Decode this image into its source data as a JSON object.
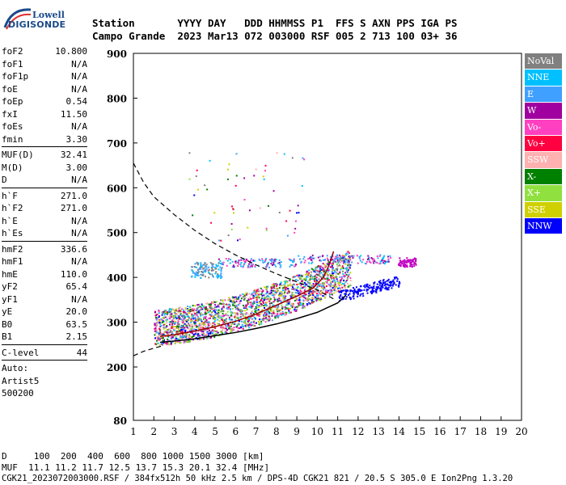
{
  "logo": {
    "brand": "Lowell",
    "name": "DIGISONDE"
  },
  "header": {
    "row1": "Station       YYYY DAY   DDD HHMMSS P1  FFS S AXN PPS IGA PS",
    "row2": "Campo Grande  2023 Mar13 072 003000 RSF 005 2 713 100 03+ 36"
  },
  "params": [
    {
      "label": "foF2",
      "value": "10.800"
    },
    {
      "label": "foF1",
      "value": "N/A"
    },
    {
      "label": "foF1p",
      "value": "N/A"
    },
    {
      "label": "foE",
      "value": "N/A"
    },
    {
      "label": "foEp",
      "value": "0.54"
    },
    {
      "label": "fxI",
      "value": "11.50"
    },
    {
      "label": "foEs",
      "value": "N/A"
    },
    {
      "label": "fmin",
      "value": "3.30"
    },
    {
      "sep": true
    },
    {
      "label": "MUF(D)",
      "value": "32.41"
    },
    {
      "label": "M(D)",
      "value": "3.00"
    },
    {
      "label": "D",
      "value": "N/A"
    },
    {
      "sep": true
    },
    {
      "label": "h`F",
      "value": "271.0"
    },
    {
      "label": "h`F2",
      "value": "271.0"
    },
    {
      "label": "h`E",
      "value": "N/A"
    },
    {
      "label": "h`Es",
      "value": "N/A"
    },
    {
      "sep": true
    },
    {
      "label": "hmF2",
      "value": "336.6"
    },
    {
      "label": "hmF1",
      "value": "N/A"
    },
    {
      "label": "hmE",
      "value": "110.0"
    },
    {
      "label": "yF2",
      "value": "65.4"
    },
    {
      "label": "yF1",
      "value": "N/A"
    },
    {
      "label": "yE",
      "value": "20.0"
    },
    {
      "label": "B0",
      "value": "63.5"
    },
    {
      "label": "B1",
      "value": "2.15"
    },
    {
      "sep": true
    },
    {
      "label": "C-level",
      "value": "44"
    },
    {
      "sep": true
    },
    {
      "label": "Auto:",
      "value": ""
    },
    {
      "label": "Artist5",
      "value": ""
    },
    {
      "label": "500200",
      "value": ""
    }
  ],
  "legend": [
    {
      "label": "NoVal",
      "color": "#808080"
    },
    {
      "label": "NNE",
      "color": "#00c0ff"
    },
    {
      "label": "E",
      "color": "#40a0ff"
    },
    {
      "label": "W",
      "color": "#a000a0"
    },
    {
      "label": "Vo-",
      "color": "#ff40c0"
    },
    {
      "label": "Vo+",
      "color": "#ff0040"
    },
    {
      "label": "SSW",
      "color": "#ffb0b0"
    },
    {
      "label": "X-",
      "color": "#008000"
    },
    {
      "label": "X+",
      "color": "#90e040"
    },
    {
      "label": "SSE",
      "color": "#d0d000"
    },
    {
      "label": "NNW",
      "color": "#0000ff"
    }
  ],
  "footer": {
    "d_row": "D     100  200  400  600  800 1000 1500 3000 [km]",
    "muf_row": "MUF  11.1 11.2 11.7 12.5 13.7 15.3 20.1 32.4 [MHz]",
    "file_row": "CGK21_2023072003000.RSF / 384fx512h 50 kHz 2.5 km / DPS-4D CGK21 821 / 20.5 S 305.0 E Ion2Png 1.3.20"
  },
  "chart_data": {
    "type": "scatter",
    "xlim": [
      1,
      20
    ],
    "ylim": [
      80,
      900
    ],
    "xticks": [
      1,
      2,
      3,
      4,
      5,
      6,
      7,
      8,
      9,
      10,
      11,
      12,
      13,
      14,
      15,
      16,
      17,
      18,
      19,
      20
    ],
    "yticks": [
      80,
      200,
      300,
      400,
      500,
      600,
      700,
      800,
      900
    ],
    "traces": [
      {
        "name": "o-trace",
        "color": "#990000",
        "points": [
          [
            2.3,
            268
          ],
          [
            3,
            272
          ],
          [
            4,
            280
          ],
          [
            5,
            290
          ],
          [
            6,
            302
          ],
          [
            7,
            318
          ],
          [
            8,
            338
          ],
          [
            9,
            358
          ],
          [
            9.8,
            376
          ],
          [
            10.3,
            400
          ],
          [
            10.6,
            430
          ],
          [
            10.8,
            458
          ]
        ]
      },
      {
        "name": "x-trace",
        "color": "#000000",
        "points": [
          [
            2.3,
            255
          ],
          [
            3,
            258
          ],
          [
            4,
            263
          ],
          [
            5,
            270
          ],
          [
            6,
            277
          ],
          [
            7,
            286
          ],
          [
            8,
            296
          ],
          [
            9,
            308
          ],
          [
            10,
            322
          ],
          [
            11,
            343
          ],
          [
            11.4,
            360
          ]
        ]
      }
    ],
    "dashed_profile": {
      "color": "#000000",
      "points": [
        [
          1,
          655
        ],
        [
          1.5,
          612
        ],
        [
          2,
          580
        ],
        [
          3,
          540
        ],
        [
          4,
          505
        ],
        [
          5,
          475
        ],
        [
          6,
          450
        ],
        [
          7,
          428
        ],
        [
          8,
          408
        ],
        [
          9,
          390
        ],
        [
          10,
          372
        ],
        [
          10.8,
          352
        ]
      ]
    },
    "lower_curve": {
      "color": "#000000",
      "points": [
        [
          1,
          225
        ],
        [
          1.5,
          235
        ],
        [
          2,
          242
        ],
        [
          2.5,
          248
        ]
      ]
    }
  }
}
